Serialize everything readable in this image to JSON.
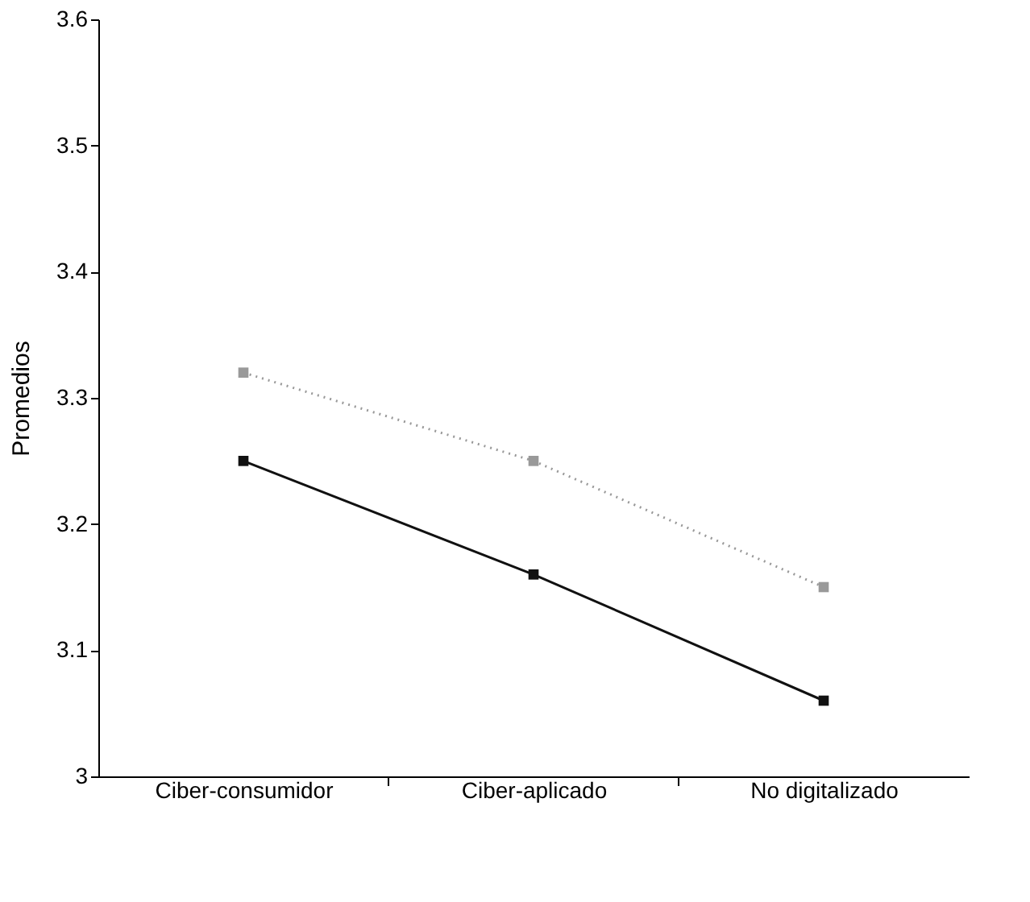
{
  "chart_data": {
    "type": "line",
    "ylabel": "Promedios",
    "categories": [
      "Ciber-consumidor",
      "Ciber-aplicado",
      "No digitalizado"
    ],
    "series": [
      {
        "color": "#999999",
        "values": [
          3.32,
          3.25,
          3.15
        ],
        "line_style": "dotted"
      },
      {
        "color": "#111111",
        "values": [
          3.25,
          3.16,
          3.06
        ],
        "line_style": "solid"
      }
    ],
    "ylim": [
      3,
      3.6
    ],
    "yticks": [
      3,
      3.1,
      3.2,
      3.3,
      3.4,
      3.5,
      3.6
    ],
    "marker": "square",
    "grid": false
  }
}
